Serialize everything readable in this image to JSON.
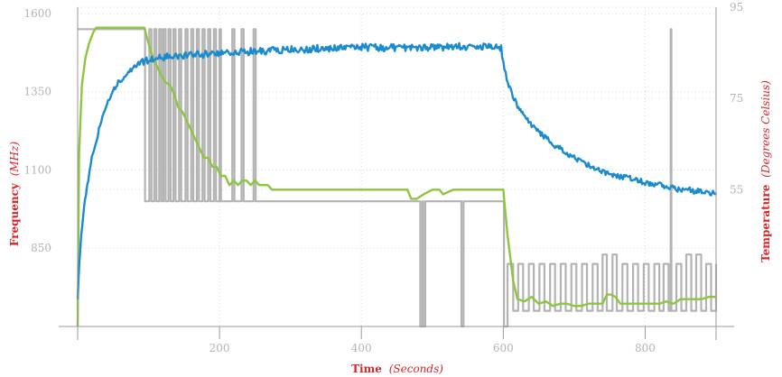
{
  "chart_data": {
    "type": "line",
    "x_axis": {
      "title_bold": "Time",
      "title_italic": "(Seconds)",
      "range": [
        0,
        900
      ],
      "ticks": [
        200,
        400,
        600,
        800
      ]
    },
    "y_left": {
      "title_bold": "Frequency",
      "title_italic": "(MHz)",
      "range": [
        600,
        1620
      ],
      "ticks": [
        850,
        1100,
        1350,
        1600
      ]
    },
    "y_right": {
      "title_bold": "Temperature",
      "title_italic": "(Degrees Celsius)",
      "range": [
        25,
        95
      ],
      "ticks": [
        55,
        75,
        95
      ]
    },
    "grid": true,
    "series": [
      {
        "color": "#b3b3b3",
        "axis": "left",
        "style": "frequency-square-wave",
        "points": [
          [
            0,
            1550
          ],
          [
            93,
            1550
          ],
          [
            95,
            1000
          ],
          [
            101,
            1550
          ],
          [
            104,
            1000
          ],
          [
            108,
            1550
          ],
          [
            111,
            1000
          ],
          [
            115,
            1550
          ],
          [
            118,
            1000
          ],
          [
            121,
            1550
          ],
          [
            124,
            1000
          ],
          [
            128,
            1550
          ],
          [
            131,
            1000
          ],
          [
            135,
            1550
          ],
          [
            138,
            1000
          ],
          [
            143,
            1550
          ],
          [
            146,
            1000
          ],
          [
            152,
            1550
          ],
          [
            155,
            1000
          ],
          [
            160,
            1550
          ],
          [
            163,
            1000
          ],
          [
            168,
            1550
          ],
          [
            171,
            1000
          ],
          [
            176,
            1550
          ],
          [
            179,
            1000
          ],
          [
            184,
            1550
          ],
          [
            187,
            1000
          ],
          [
            192,
            1550
          ],
          [
            195,
            1000
          ],
          [
            200,
            1550
          ],
          [
            202,
            1000
          ],
          [
            218,
            1550
          ],
          [
            221,
            1000
          ],
          [
            231,
            1550
          ],
          [
            234,
            1000
          ],
          [
            248,
            1550
          ],
          [
            251,
            1000
          ],
          [
            482,
            1000
          ],
          [
            483,
            600
          ],
          [
            486,
            1000
          ],
          [
            487,
            600
          ],
          [
            490,
            1000
          ],
          [
            540,
            1000
          ],
          [
            541,
            600
          ],
          [
            544,
            1000
          ],
          [
            600,
            1000
          ],
          [
            601,
            600
          ],
          [
            606,
            800
          ],
          [
            614,
            650
          ],
          [
            621,
            800
          ],
          [
            628,
            650
          ],
          [
            636,
            800
          ],
          [
            643,
            650
          ],
          [
            651,
            800
          ],
          [
            658,
            650
          ],
          [
            666,
            800
          ],
          [
            673,
            650
          ],
          [
            681,
            800
          ],
          [
            688,
            650
          ],
          [
            696,
            800
          ],
          [
            703,
            650
          ],
          [
            711,
            800
          ],
          [
            718,
            650
          ],
          [
            726,
            800
          ],
          [
            733,
            650
          ],
          [
            740,
            830
          ],
          [
            746,
            650
          ],
          [
            754,
            830
          ],
          [
            760,
            650
          ],
          [
            768,
            800
          ],
          [
            775,
            650
          ],
          [
            783,
            800
          ],
          [
            790,
            650
          ],
          [
            798,
            800
          ],
          [
            805,
            650
          ],
          [
            813,
            800
          ],
          [
            820,
            650
          ],
          [
            826,
            800
          ],
          [
            833,
            650
          ],
          [
            836,
            1550
          ],
          [
            837,
            650
          ],
          [
            844,
            800
          ],
          [
            851,
            650
          ],
          [
            858,
            830
          ],
          [
            865,
            650
          ],
          [
            872,
            830
          ],
          [
            879,
            650
          ],
          [
            886,
            800
          ],
          [
            893,
            650
          ],
          [
            900,
            800
          ]
        ]
      },
      {
        "color": "#8cc63f",
        "axis": "right",
        "style": "temperature",
        "points": [
          [
            0,
            25
          ],
          [
            2,
            63
          ],
          [
            6,
            78
          ],
          [
            11,
            84
          ],
          [
            16,
            87
          ],
          [
            22,
            89.5
          ],
          [
            26,
            90.5
          ],
          [
            94,
            90.5
          ],
          [
            100,
            87
          ],
          [
            106,
            84
          ],
          [
            112,
            82
          ],
          [
            118,
            80
          ],
          [
            124,
            78.5
          ],
          [
            130,
            78
          ],
          [
            136,
            76
          ],
          [
            142,
            73
          ],
          [
            148,
            72
          ],
          [
            154,
            70
          ],
          [
            160,
            68
          ],
          [
            166,
            66
          ],
          [
            172,
            64
          ],
          [
            178,
            62
          ],
          [
            184,
            62
          ],
          [
            190,
            60
          ],
          [
            196,
            60
          ],
          [
            202,
            58
          ],
          [
            208,
            58
          ],
          [
            214,
            56
          ],
          [
            220,
            57
          ],
          [
            226,
            56
          ],
          [
            232,
            57
          ],
          [
            238,
            57
          ],
          [
            244,
            56
          ],
          [
            250,
            57
          ],
          [
            256,
            56
          ],
          [
            262,
            56
          ],
          [
            268,
            56
          ],
          [
            274,
            55
          ],
          [
            465,
            55
          ],
          [
            470,
            53
          ],
          [
            478,
            53
          ],
          [
            488,
            54
          ],
          [
            500,
            55
          ],
          [
            510,
            55
          ],
          [
            515,
            54
          ],
          [
            530,
            55
          ],
          [
            545,
            55
          ],
          [
            600,
            55
          ],
          [
            603,
            50
          ],
          [
            606,
            45
          ],
          [
            610,
            40
          ],
          [
            614,
            35
          ],
          [
            620,
            31
          ],
          [
            630,
            30.5
          ],
          [
            640,
            31.5
          ],
          [
            650,
            30
          ],
          [
            660,
            30.5
          ],
          [
            670,
            29.5
          ],
          [
            680,
            30
          ],
          [
            690,
            30
          ],
          [
            700,
            29.5
          ],
          [
            710,
            29.5
          ],
          [
            720,
            30
          ],
          [
            730,
            30
          ],
          [
            740,
            30
          ],
          [
            746,
            32
          ],
          [
            752,
            32
          ],
          [
            758,
            31.5
          ],
          [
            765,
            30
          ],
          [
            780,
            30
          ],
          [
            790,
            30
          ],
          [
            800,
            30
          ],
          [
            810,
            30
          ],
          [
            820,
            30
          ],
          [
            830,
            30.5
          ],
          [
            840,
            30
          ],
          [
            850,
            31
          ],
          [
            860,
            31
          ],
          [
            870,
            31
          ],
          [
            880,
            31
          ],
          [
            890,
            31.5
          ],
          [
            900,
            31.5
          ]
        ]
      },
      {
        "color": "#1a8bce",
        "axis": "right",
        "style": "temperature-noisy",
        "points": [
          [
            0,
            31
          ],
          [
            2,
            38
          ],
          [
            5,
            45
          ],
          [
            10,
            52
          ],
          [
            15,
            57
          ],
          [
            20,
            62
          ],
          [
            25,
            65
          ],
          [
            30,
            68
          ],
          [
            35,
            71
          ],
          [
            40,
            73
          ],
          [
            50,
            77
          ],
          [
            60,
            79
          ],
          [
            70,
            80.5
          ],
          [
            80,
            82
          ],
          [
            90,
            83
          ],
          [
            100,
            83.5
          ],
          [
            120,
            84
          ],
          [
            140,
            84.3
          ],
          [
            160,
            84.5
          ],
          [
            180,
            84.7
          ],
          [
            200,
            85
          ],
          [
            250,
            85.3
          ],
          [
            300,
            85.7
          ],
          [
            350,
            86
          ],
          [
            400,
            86.2
          ],
          [
            450,
            86.1
          ],
          [
            500,
            86.2
          ],
          [
            550,
            86.4
          ],
          [
            590,
            86.3
          ],
          [
            597,
            86
          ],
          [
            600,
            83
          ],
          [
            605,
            79
          ],
          [
            612,
            76
          ],
          [
            620,
            73.5
          ],
          [
            630,
            71
          ],
          [
            640,
            69
          ],
          [
            650,
            67.5
          ],
          [
            660,
            66.5
          ],
          [
            670,
            65
          ],
          [
            680,
            64
          ],
          [
            690,
            63
          ],
          [
            700,
            62
          ],
          [
            710,
            61
          ],
          [
            720,
            60.5
          ],
          [
            730,
            59.5
          ],
          [
            740,
            59
          ],
          [
            750,
            58.5
          ],
          [
            760,
            58
          ],
          [
            770,
            57.8
          ],
          [
            780,
            57.5
          ],
          [
            790,
            57
          ],
          [
            800,
            56.6
          ],
          [
            810,
            56.3
          ],
          [
            820,
            56
          ],
          [
            830,
            55.5
          ],
          [
            840,
            55.3
          ],
          [
            850,
            55
          ],
          [
            860,
            55
          ],
          [
            870,
            54.7
          ],
          [
            880,
            54.5
          ],
          [
            890,
            54.3
          ],
          [
            900,
            54.3
          ]
        ]
      }
    ]
  }
}
